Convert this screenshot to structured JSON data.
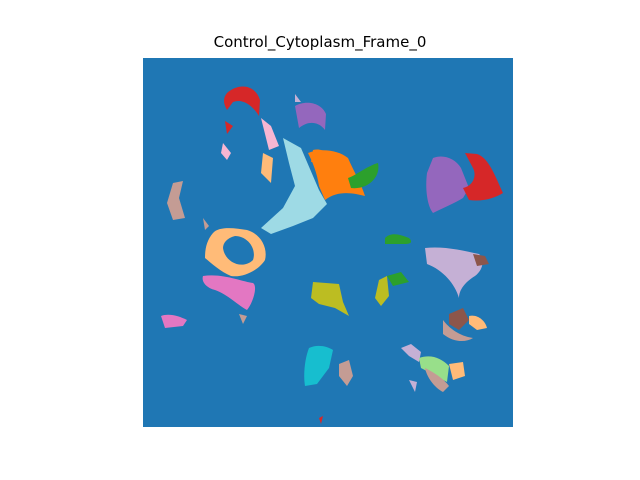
{
  "title": "Control_Cytoplasm_Frame_0",
  "image": {
    "kind": "segmentation-mask",
    "background_color": "#1f77b4",
    "palette": [
      "#ff7f0e",
      "#2ca02c",
      "#d62728",
      "#9467bd",
      "#8c564b",
      "#e377c2",
      "#bcbd22",
      "#17becf",
      "#aec7e8",
      "#ffbb78",
      "#98df8a",
      "#ff9896",
      "#c5b0d5",
      "#c49c94",
      "#f7b6d2",
      "#9edae5"
    ]
  }
}
